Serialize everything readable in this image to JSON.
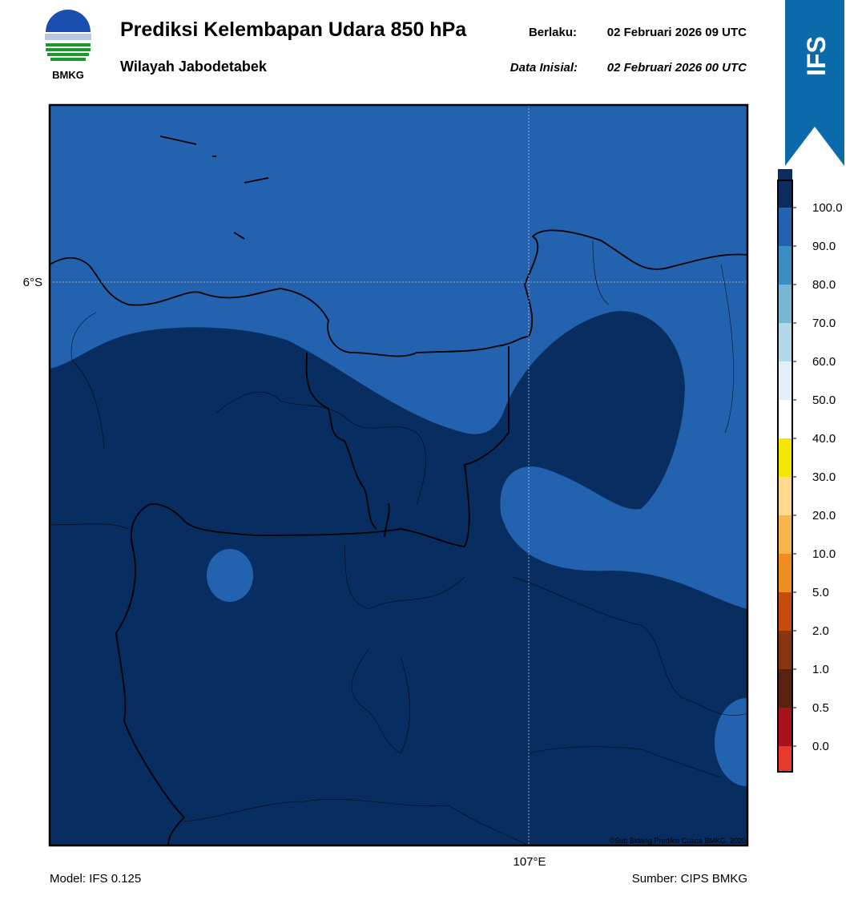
{
  "header": {
    "title": "Prediksi Kelembapan Udara 850 hPa",
    "subtitle": "Wilayah Jabodetabek",
    "valid_label": "Berlaku:",
    "valid_time": "02 Februari 2026 09 UTC",
    "init_label": "Data Inisial:",
    "init_time": "02 Februari 2026 00 UTC"
  },
  "logo": {
    "text": "BMKG"
  },
  "badge": {
    "text": "IFS"
  },
  "map": {
    "lat_label": "6°S",
    "lon_label": "107°E",
    "credit": "©Sub Bidang Prediksi Cuaca BMKG, 2020"
  },
  "colorbar": {
    "ticks": [
      "0.0",
      "0.5",
      "1.0",
      "2.0",
      "5.0",
      "10.0",
      "20.0",
      "30.0",
      "40.0",
      "50.0",
      "60.0",
      "70.0",
      "80.0",
      "90.0",
      "100.0"
    ],
    "colors": [
      "#e8392e",
      "#a8121a",
      "#5a2210",
      "#8a3412",
      "#c64c0c",
      "#ef8e1e",
      "#f7b64c",
      "#ffda8c",
      "#f4e600",
      "#ffffff",
      "#e3eef8",
      "#b3d8ea",
      "#78b6d6",
      "#3a8ec0",
      "#2262ae",
      "#0a2d5e",
      "#2b0a50"
    ]
  },
  "footer": {
    "model": "Model: IFS 0.125",
    "source": "Sumber: CIPS BMKG"
  }
}
